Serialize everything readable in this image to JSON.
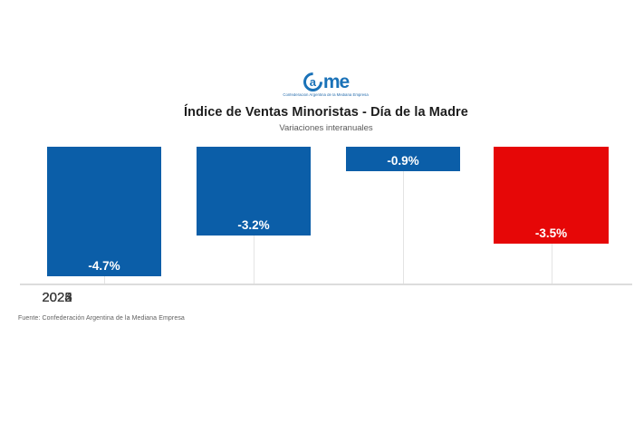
{
  "logo": {
    "c_letter": "a",
    "me_letters": "me",
    "tagline": "Confederación Argentina de la Mediana Empresa"
  },
  "header": {
    "title": "Índice de Ventas Minoristas - Día de la Madre",
    "subtitle": "Variaciones interanuales"
  },
  "chart_data": {
    "type": "bar",
    "title": "Índice de Ventas Minoristas - Día de la Madre",
    "subtitle": "Variaciones interanuales",
    "categories": [
      "2022",
      "2023",
      "2024",
      "2025"
    ],
    "values": [
      -4.7,
      -3.2,
      -0.9,
      -3.5
    ],
    "value_labels": [
      "-4.7%",
      "-3.2%",
      "-0.9%",
      "-3.5%"
    ],
    "bar_colors": [
      "#0b5ea8",
      "#0b5ea8",
      "#0b5ea8",
      "#e60707"
    ],
    "value_label_color": "#ffffff",
    "xlabel": "",
    "ylabel": "",
    "ylim": [
      -5,
      0
    ],
    "baseline": 0,
    "orientation": "vertical-negative",
    "grid": false,
    "legend": "none"
  },
  "footer": {
    "source": "Fuente: Confederación Argentina de la Mediana Empresa"
  },
  "colors": {
    "bar_blue": "#0b5ea8",
    "bar_red": "#e60707",
    "logo_blue": "#1a72b8",
    "axis_gray": "#dcdcdc",
    "title_text": "#1d1d1d",
    "background": "#ffffff"
  }
}
